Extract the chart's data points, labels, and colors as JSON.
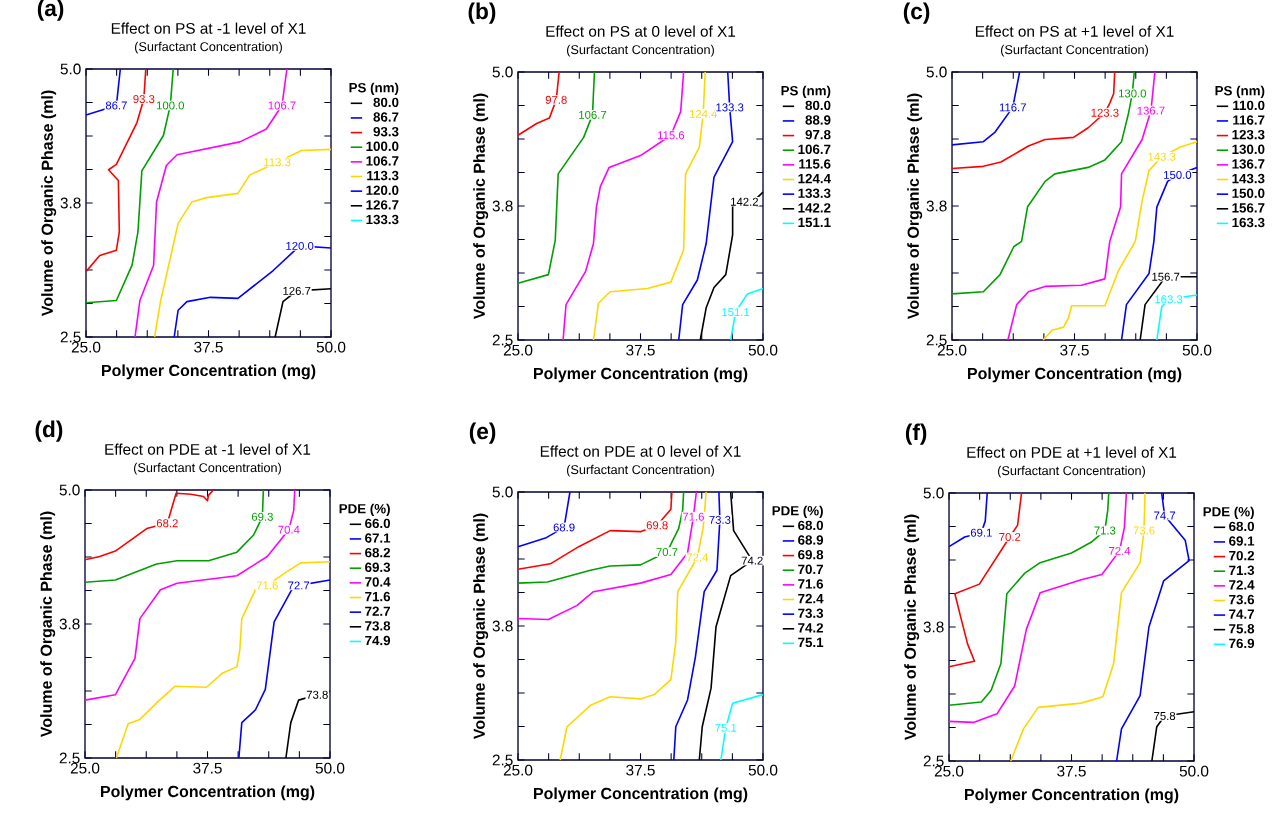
{
  "chart_data": [
    {
      "type": "line",
      "title": "Effect on PS at -1 level of X1",
      "subtitle": "(Surfactant Concentration)",
      "xlabel": "Polymer Concentration (mg)",
      "ylabel": "Volume of Organic Phase (ml)",
      "legend_title": "PS (nm)",
      "legend": "right",
      "xlim": [
        25,
        50
      ],
      "ylim": [
        2.5,
        5.0
      ],
      "xticks": [
        {
          "value": 25,
          "label": "25.0"
        },
        {
          "value": 28.125,
          "label": null
        },
        {
          "value": 31.25,
          "label": null
        },
        {
          "value": 34.375,
          "label": null
        },
        {
          "value": 37.5,
          "label": "37.5"
        },
        {
          "value": 40.625,
          "label": null
        },
        {
          "value": 43.75,
          "label": null
        },
        {
          "value": 46.875,
          "label": null
        },
        {
          "value": 50,
          "label": "50.0"
        }
      ],
      "yticks": [
        {
          "value": 2.5,
          "label": "2.5"
        },
        {
          "value": 2.8125,
          "label": null
        },
        {
          "value": 3.125,
          "label": null
        },
        {
          "value": 3.4375,
          "label": null
        },
        {
          "value": 3.75,
          "label": "3.8"
        },
        {
          "value": 4.0625,
          "label": null
        },
        {
          "value": 4.375,
          "label": null
        },
        {
          "value": 4.6875,
          "label": null
        },
        {
          "value": 5.0,
          "label": "5.0"
        }
      ],
      "annotations": [
        "(a)",
        {
          "text": "86.7",
          "x": 28.1,
          "y": 4.66
        },
        {
          "text": "93.3",
          "x": 30.9,
          "y": 4.72
        },
        {
          "text": "100.0",
          "x": 33.6,
          "y": 4.66
        },
        {
          "text": "106.7",
          "x": 45.0,
          "y": 4.66
        },
        {
          "text": "113.3",
          "x": 44.5,
          "y": 4.13
        },
        {
          "text": "120.0",
          "x": 46.8,
          "y": 3.35
        },
        {
          "text": "126.7",
          "x": 46.5,
          "y": 2.93
        }
      ],
      "series": [
        {
          "name": "80.0",
          "color": "#000000"
        },
        {
          "name": "86.7",
          "color": "#0000ff",
          "x": [
            25,
            28.1,
            28.5
          ],
          "values": [
            4.57,
            4.66,
            5.0
          ]
        },
        {
          "name": "93.3",
          "color": "#ff0000",
          "x": [
            25,
            26.4,
            28.1,
            28.4,
            28.3,
            27.3,
            28.1,
            30.2,
            30.9,
            31.1
          ],
          "values": [
            3.11,
            3.26,
            3.31,
            3.48,
            3.96,
            4.06,
            4.11,
            4.5,
            4.72,
            5.0
          ]
        },
        {
          "name": "100.0",
          "color": "#00a000",
          "x": [
            25,
            28.1,
            29.7,
            30.3,
            30.7,
            32.9,
            33.6,
            33.9
          ],
          "values": [
            2.82,
            2.84,
            3.17,
            3.48,
            4.05,
            4.38,
            4.66,
            5.0
          ]
        },
        {
          "name": "106.7",
          "color": "#ff00ff",
          "x": [
            30.0,
            30.5,
            31.9,
            32.2,
            33.2,
            34.3,
            40.7,
            43.4,
            45.0,
            45.5
          ],
          "values": [
            2.5,
            2.84,
            3.17,
            3.76,
            4.1,
            4.2,
            4.32,
            4.44,
            4.66,
            5.0
          ]
        },
        {
          "name": "113.3",
          "color": "#ffd700",
          "x": [
            32.0,
            32.6,
            34.4,
            35.8,
            37.3,
            40.5,
            41.7,
            44.5,
            47.0,
            50
          ],
          "values": [
            2.5,
            2.83,
            3.56,
            3.76,
            3.8,
            3.84,
            4.01,
            4.13,
            4.24,
            4.25
          ]
        },
        {
          "name": "120.0",
          "color": "#0000ff",
          "x": [
            34.0,
            34.4,
            35.3,
            37.7,
            40.5,
            44.1,
            46.8,
            50
          ],
          "values": [
            2.5,
            2.75,
            2.83,
            2.87,
            2.86,
            3.12,
            3.35,
            3.33
          ]
        },
        {
          "name": "126.7",
          "color": "#000000",
          "x": [
            44.3,
            45.1,
            46.5,
            50
          ],
          "values": [
            2.5,
            2.83,
            2.93,
            2.95
          ]
        },
        {
          "name": "133.3",
          "color": "#00ffff"
        }
      ]
    },
    {
      "type": "line",
      "title": "Effect on PS at 0 level of X1",
      "subtitle": "(Surfactant Concentration)",
      "xlabel": "Polymer Concentration (mg)",
      "ylabel": "Volume of Organic Phase (ml)",
      "legend_title": "PS (nm)",
      "legend": "right",
      "xlim": [
        25,
        50
      ],
      "ylim": [
        2.5,
        5.0
      ],
      "xticks": [
        {
          "value": 25,
          "label": "25.0"
        },
        {
          "value": 28.125,
          "label": null
        },
        {
          "value": 31.25,
          "label": null
        },
        {
          "value": 34.375,
          "label": null
        },
        {
          "value": 37.5,
          "label": "37.5"
        },
        {
          "value": 40.625,
          "label": null
        },
        {
          "value": 43.75,
          "label": null
        },
        {
          "value": 46.875,
          "label": null
        },
        {
          "value": 50,
          "label": "50.0"
        }
      ],
      "yticks": [
        {
          "value": 2.5,
          "label": "2.5"
        },
        {
          "value": 2.8125,
          "label": null
        },
        {
          "value": 3.125,
          "label": null
        },
        {
          "value": 3.4375,
          "label": null
        },
        {
          "value": 3.75,
          "label": "3.8"
        },
        {
          "value": 4.0625,
          "label": null
        },
        {
          "value": 4.375,
          "label": null
        },
        {
          "value": 4.6875,
          "label": null
        },
        {
          "value": 5.0,
          "label": "5.0"
        }
      ],
      "annotations": [
        "(b)",
        {
          "text": "97.8",
          "x": 28.9,
          "y": 4.74
        },
        {
          "text": "106.7",
          "x": 32.6,
          "y": 4.6
        },
        {
          "text": "115.6",
          "x": 40.6,
          "y": 4.41
        },
        {
          "text": "124.4",
          "x": 43.9,
          "y": 4.61
        },
        {
          "text": "133.3",
          "x": 46.6,
          "y": 4.67
        },
        {
          "text": "142.2",
          "x": 48.1,
          "y": 3.79
        },
        {
          "text": "151.1",
          "x": 47.2,
          "y": 2.76
        }
      ],
      "series": [
        {
          "name": "80.0",
          "color": "#000000"
        },
        {
          "name": "88.9",
          "color": "#0000ff"
        },
        {
          "name": "97.8",
          "color": "#ff0000",
          "x": [
            25,
            26.9,
            28.2,
            28.9,
            29.2
          ],
          "values": [
            4.41,
            4.52,
            4.57,
            4.74,
            5.0
          ]
        },
        {
          "name": "106.7",
          "color": "#00a000",
          "x": [
            25,
            28.1,
            28.8,
            29.1,
            31.7,
            32.6,
            32.8
          ],
          "values": [
            3.03,
            3.11,
            3.43,
            4.05,
            4.39,
            4.6,
            5.0
          ]
        },
        {
          "name": "115.6",
          "color": "#ff00ff",
          "x": [
            29.6,
            29.9,
            31.9,
            32.7,
            33.0,
            33.4,
            34.3,
            37.5,
            40.6,
            41.6,
            41.9
          ],
          "values": [
            2.5,
            2.83,
            3.14,
            3.4,
            3.74,
            3.93,
            4.11,
            4.22,
            4.41,
            4.63,
            5.0
          ]
        },
        {
          "name": "124.4",
          "color": "#ffd700",
          "x": [
            32.7,
            33.2,
            34.4,
            38.2,
            40.6,
            41.9,
            42.1,
            43.5,
            43.9,
            44.1
          ],
          "values": [
            2.5,
            2.84,
            2.95,
            2.98,
            3.04,
            3.34,
            4.05,
            4.3,
            4.61,
            5.0
          ]
        },
        {
          "name": "133.3",
          "color": "#0000ff",
          "x": [
            41.4,
            41.8,
            43.3,
            44.2,
            45.0,
            46.9,
            46.6,
            46.4
          ],
          "values": [
            2.5,
            2.83,
            3.06,
            3.4,
            4.02,
            4.35,
            4.67,
            5.0
          ]
        },
        {
          "name": "142.2",
          "color": "#000000",
          "x": [
            43.6,
            44.2,
            45.0,
            46.2,
            46.9,
            46.9,
            48.1,
            49.1,
            50
          ],
          "values": [
            2.5,
            2.8,
            2.99,
            3.11,
            3.48,
            3.75,
            3.79,
            3.8,
            3.88
          ]
        },
        {
          "name": "151.1",
          "color": "#00ffff",
          "x": [
            46.7,
            47.2,
            48.4,
            50
          ],
          "values": [
            2.5,
            2.76,
            2.93,
            2.98
          ]
        }
      ]
    },
    {
      "type": "line",
      "title": "Effect on PS at +1 level of X1",
      "subtitle": "(Surfactant Concentration)",
      "xlabel": "Polymer Concentration (mg)",
      "ylabel": "Volume of Organic Phase (ml)",
      "legend_title": "PS (nm)",
      "legend": "right",
      "xlim": [
        25,
        50
      ],
      "ylim": [
        2.5,
        5.0
      ],
      "xticks": [
        {
          "value": 25,
          "label": "25.0"
        },
        {
          "value": 28.125,
          "label": null
        },
        {
          "value": 31.25,
          "label": null
        },
        {
          "value": 34.375,
          "label": null
        },
        {
          "value": 37.5,
          "label": "37.5"
        },
        {
          "value": 40.625,
          "label": null
        },
        {
          "value": 43.75,
          "label": null
        },
        {
          "value": 46.875,
          "label": null
        },
        {
          "value": 50,
          "label": "50.0"
        }
      ],
      "yticks": [
        {
          "value": 2.5,
          "label": "2.5"
        },
        {
          "value": 2.8125,
          "label": null
        },
        {
          "value": 3.125,
          "label": null
        },
        {
          "value": 3.4375,
          "label": null
        },
        {
          "value": 3.75,
          "label": "3.8"
        },
        {
          "value": 4.0625,
          "label": null
        },
        {
          "value": 4.375,
          "label": null
        },
        {
          "value": 4.6875,
          "label": null
        },
        {
          "value": 5.0,
          "label": "5.0"
        }
      ],
      "annotations": [
        "(c)",
        {
          "text": "116.7",
          "x": 31.2,
          "y": 4.67
        },
        {
          "text": "123.3",
          "x": 40.6,
          "y": 4.62
        },
        {
          "text": "130.0",
          "x": 43.4,
          "y": 4.8
        },
        {
          "text": "136.7",
          "x": 45.3,
          "y": 4.64
        },
        {
          "text": "143.3",
          "x": 46.4,
          "y": 4.21
        },
        {
          "text": "150.0",
          "x": 48.0,
          "y": 4.04
        },
        {
          "text": "156.7",
          "x": 46.8,
          "y": 3.09
        },
        {
          "text": "163.3",
          "x": 47.1,
          "y": 2.88
        }
      ],
      "series": [
        {
          "name": "110.0",
          "color": "#000000"
        },
        {
          "name": "116.7",
          "color": "#0000ff",
          "x": [
            25,
            28.2,
            29.4,
            31.2,
            31.9
          ],
          "values": [
            4.32,
            4.35,
            4.44,
            4.67,
            5.0
          ]
        },
        {
          "name": "123.3",
          "color": "#ff0000",
          "x": [
            25,
            28.2,
            30.0,
            32.8,
            34.5,
            37.4,
            38.9,
            40.6,
            41.1,
            41.5,
            41.6
          ],
          "values": [
            4.1,
            4.12,
            4.16,
            4.31,
            4.37,
            4.39,
            4.48,
            4.62,
            4.71,
            4.8,
            5.0
          ]
        },
        {
          "name": "130.0",
          "color": "#00a000",
          "x": [
            25,
            28.2,
            29.9,
            31.3,
            32.1,
            32.7,
            34.5,
            35.5,
            38.9,
            40.6,
            42.3,
            43.0,
            43.4,
            43.6
          ],
          "values": [
            2.93,
            2.95,
            3.11,
            3.37,
            3.42,
            3.74,
            3.98,
            4.05,
            4.11,
            4.18,
            4.35,
            4.61,
            4.8,
            5.0
          ]
        },
        {
          "name": "136.7",
          "color": "#ff00ff",
          "x": [
            30.7,
            31.6,
            32.8,
            34.5,
            38.2,
            40.6,
            41.1,
            42.2,
            42.3,
            44.4,
            45.3,
            45.7
          ],
          "values": [
            2.5,
            2.83,
            2.95,
            3.0,
            3.01,
            3.07,
            3.42,
            3.74,
            4.05,
            4.37,
            4.64,
            5.0
          ]
        },
        {
          "name": "143.3",
          "color": "#ffd700",
          "x": [
            34.3,
            35.2,
            36.4,
            36.9,
            37.2,
            40.6,
            42.0,
            43.7,
            44.4,
            45.1,
            46.4,
            48.3,
            50
          ],
          "values": [
            2.5,
            2.59,
            2.62,
            2.71,
            2.82,
            2.82,
            3.15,
            3.42,
            3.8,
            4.08,
            4.21,
            4.3,
            4.35
          ]
        },
        {
          "name": "150.0",
          "color": "#0000ff",
          "x": [
            42.3,
            42.8,
            45.1,
            45.6,
            45.9,
            47.0,
            48.0,
            50
          ],
          "values": [
            2.5,
            2.83,
            3.12,
            3.42,
            3.74,
            3.98,
            4.04,
            4.11
          ]
        },
        {
          "name": "156.7",
          "color": "#000000",
          "x": [
            44.2,
            44.7,
            46.8,
            50
          ],
          "values": [
            2.5,
            2.83,
            3.09,
            3.09
          ]
        },
        {
          "name": "163.3",
          "color": "#00ffff",
          "x": [
            45.9,
            46.4,
            47.1,
            50
          ],
          "values": [
            2.5,
            2.81,
            2.88,
            2.92
          ]
        }
      ]
    },
    {
      "type": "line",
      "title": "Effect on PDE at -1 level of X1",
      "subtitle": "(Surfactant Concentration)",
      "xlabel": "Polymer Concentration (mg)",
      "ylabel": "Volume of Organic Phase (ml)",
      "legend_title": "PDE (%)",
      "legend": "right",
      "xlim": [
        25,
        50
      ],
      "ylim": [
        2.5,
        5.0
      ],
      "xticks": [
        {
          "value": 25,
          "label": "25.0"
        },
        {
          "value": 28.125,
          "label": null
        },
        {
          "value": 31.25,
          "label": null
        },
        {
          "value": 34.375,
          "label": null
        },
        {
          "value": 37.5,
          "label": "37.5"
        },
        {
          "value": 40.625,
          "label": null
        },
        {
          "value": 43.75,
          "label": null
        },
        {
          "value": 46.875,
          "label": null
        },
        {
          "value": 50,
          "label": "50.0"
        }
      ],
      "yticks": [
        {
          "value": 2.5,
          "label": "2.5"
        },
        {
          "value": 2.8125,
          "label": null
        },
        {
          "value": 3.125,
          "label": null
        },
        {
          "value": 3.4375,
          "label": null
        },
        {
          "value": 3.75,
          "label": "3.8"
        },
        {
          "value": 4.0625,
          "label": null
        },
        {
          "value": 4.375,
          "label": null
        },
        {
          "value": 4.6875,
          "label": null
        },
        {
          "value": 5.0,
          "label": "5.0"
        }
      ],
      "annotations": [
        "(d)",
        {
          "text": "68.2",
          "x": 33.4,
          "y": 4.69
        },
        {
          "text": "69.3",
          "x": 43.1,
          "y": 4.75
        },
        {
          "text": "70.4",
          "x": 45.8,
          "y": 4.63
        },
        {
          "text": "71.6",
          "x": 43.6,
          "y": 4.11
        },
        {
          "text": "72.7",
          "x": 46.8,
          "y": 4.11
        },
        {
          "text": "73.8",
          "x": 48.7,
          "y": 3.09
        }
      ],
      "series": [
        {
          "name": "66.0",
          "color": "#000000"
        },
        {
          "name": "67.1",
          "color": "#0000ff"
        },
        {
          "name": "68.2",
          "color": "#ff0000",
          "x": [
            25,
            26.5,
            28.1,
            31.3,
            33.4,
            34.3,
            35.8,
            37.1,
            37.5,
            37.6,
            38.1
          ],
          "values": [
            4.35,
            4.38,
            4.43,
            4.64,
            4.69,
            4.97,
            4.96,
            4.94,
            4.9,
            4.95,
            5.0
          ]
        },
        {
          "name": "69.3",
          "color": "#00a000",
          "x": [
            25,
            28.1,
            32.3,
            34.4,
            37.6,
            40.5,
            42.2,
            43.1,
            43.2
          ],
          "values": [
            4.14,
            4.16,
            4.31,
            4.34,
            4.34,
            4.42,
            4.58,
            4.75,
            5.0
          ]
        },
        {
          "name": "70.4",
          "color": "#ff00ff",
          "x": [
            25,
            28.1,
            28.8,
            30.1,
            30.6,
            32.7,
            34.4,
            40.5,
            43.6,
            45.8,
            46.3,
            46.4
          ],
          "values": [
            3.04,
            3.09,
            3.21,
            3.43,
            3.8,
            4.07,
            4.13,
            4.2,
            4.38,
            4.63,
            4.81,
            5.0
          ]
        },
        {
          "name": "71.6",
          "color": "#ffd700",
          "x": [
            28.2,
            29.4,
            30.6,
            32.5,
            34.2,
            37.4,
            39.0,
            40.5,
            40.8,
            41.0,
            42.4,
            43.6,
            45.3,
            47.0,
            50
          ],
          "values": [
            2.5,
            2.82,
            2.86,
            3.03,
            3.17,
            3.16,
            3.29,
            3.35,
            3.51,
            3.8,
            4.07,
            4.11,
            4.22,
            4.32,
            4.33
          ]
        },
        {
          "name": "72.7",
          "color": "#0000ff",
          "x": [
            40.7,
            41.0,
            42.4,
            43.4,
            44.3,
            46.1,
            46.8,
            50
          ],
          "values": [
            2.5,
            2.83,
            2.95,
            3.14,
            3.77,
            4.07,
            4.11,
            4.16
          ]
        },
        {
          "name": "73.8",
          "color": "#000000",
          "x": [
            45.5,
            46.0,
            46.8,
            48.7,
            50
          ],
          "values": [
            2.5,
            2.83,
            3.04,
            3.09,
            3.12
          ]
        },
        {
          "name": "74.9",
          "color": "#00ffff"
        }
      ]
    },
    {
      "type": "line",
      "title": "Effect on PDE at 0 level of X1",
      "subtitle": "(Surfactant Concentration)",
      "xlabel": "Polymer Concentration (mg)",
      "ylabel": "Volume of Organic Phase (ml)",
      "legend_title": "PDE (%)",
      "legend": "right",
      "xlim": [
        25,
        50
      ],
      "ylim": [
        2.5,
        5.0
      ],
      "xticks": [
        {
          "value": 25,
          "label": "25.0"
        },
        {
          "value": 28.125,
          "label": null
        },
        {
          "value": 31.25,
          "label": null
        },
        {
          "value": 34.375,
          "label": null
        },
        {
          "value": 37.5,
          "label": "37.5"
        },
        {
          "value": 40.625,
          "label": null
        },
        {
          "value": 43.75,
          "label": null
        },
        {
          "value": 46.875,
          "label": null
        },
        {
          "value": 50,
          "label": "50.0"
        }
      ],
      "yticks": [
        {
          "value": 2.5,
          "label": "2.5"
        },
        {
          "value": 2.8125,
          "label": null
        },
        {
          "value": 3.125,
          "label": null
        },
        {
          "value": 3.4375,
          "label": null
        },
        {
          "value": 3.75,
          "label": "3.8"
        },
        {
          "value": 4.0625,
          "label": null
        },
        {
          "value": 4.375,
          "label": null
        },
        {
          "value": 4.6875,
          "label": null
        },
        {
          "value": 5.0,
          "label": "5.0"
        }
      ],
      "annotations": [
        "(e)",
        {
          "text": "68.9",
          "x": 29.7,
          "y": 4.67
        },
        {
          "text": "69.8",
          "x": 39.2,
          "y": 4.69
        },
        {
          "text": "71.6",
          "x": 42.9,
          "y": 4.77
        },
        {
          "text": "73.3",
          "x": 45.6,
          "y": 4.74
        },
        {
          "text": "70.7",
          "x": 40.2,
          "y": 4.44
        },
        {
          "text": "72.4",
          "x": 43.3,
          "y": 4.39
        },
        {
          "text": "74.2",
          "x": 48.9,
          "y": 4.36
        },
        {
          "text": "75.1",
          "x": 46.2,
          "y": 2.8
        }
      ],
      "series": [
        {
          "name": "68.0",
          "color": "#000000"
        },
        {
          "name": "68.9",
          "color": "#0000ff",
          "x": [
            25,
            27.8,
            29.7,
            30.3
          ],
          "values": [
            4.49,
            4.57,
            4.67,
            5.0
          ]
        },
        {
          "name": "69.8",
          "color": "#ff0000",
          "x": [
            25,
            28.3,
            31.2,
            34.4,
            37.5,
            39.2,
            40.6,
            40.7
          ],
          "values": [
            4.28,
            4.33,
            4.49,
            4.64,
            4.63,
            4.69,
            4.84,
            5.0
          ]
        },
        {
          "name": "70.7",
          "color": "#00a000",
          "x": [
            25,
            28.0,
            32.4,
            34.4,
            37.5,
            40.2,
            41.4,
            41.8,
            41.9
          ],
          "values": [
            4.15,
            4.16,
            4.27,
            4.31,
            4.32,
            4.44,
            4.66,
            4.83,
            5.0
          ]
        },
        {
          "name": "71.6",
          "color": "#ff00ff",
          "x": [
            25,
            28.1,
            31.0,
            32.7,
            37.5,
            40.6,
            42.3,
            42.9,
            43.2
          ],
          "values": [
            3.82,
            3.81,
            3.94,
            4.07,
            4.15,
            4.23,
            4.43,
            4.77,
            5.0
          ]
        },
        {
          "name": "72.4",
          "color": "#ffd700",
          "x": [
            29.3,
            30.0,
            32.4,
            34.4,
            37.5,
            38.9,
            40.6,
            41.1,
            41.3,
            43.3,
            43.9,
            44.2
          ],
          "values": [
            2.5,
            2.81,
            3.01,
            3.09,
            3.07,
            3.11,
            3.25,
            3.6,
            4.07,
            4.39,
            4.67,
            5.0
          ]
        },
        {
          "name": "73.3",
          "color": "#0000ff",
          "x": [
            40.9,
            41.1,
            42.3,
            43.1,
            44.0,
            45.3,
            45.6,
            45.5
          ],
          "values": [
            2.5,
            2.81,
            3.06,
            3.46,
            4.07,
            4.27,
            4.74,
            5.0
          ]
        },
        {
          "name": "74.2",
          "color": "#000000",
          "x": [
            43.5,
            43.8,
            44.7,
            45.2,
            46.7,
            48.9,
            47.0,
            46.7
          ],
          "values": [
            2.5,
            2.81,
            3.17,
            3.74,
            4.22,
            4.36,
            4.64,
            5.0
          ]
        },
        {
          "name": "75.1",
          "color": "#00ffff",
          "x": [
            45.7,
            46.2,
            46.9,
            50
          ],
          "values": [
            2.5,
            2.8,
            3.03,
            3.11
          ]
        }
      ]
    },
    {
      "type": "line",
      "title": "Effect on PDE at +1 level of X1",
      "subtitle": "(Surfactant Concentration)",
      "xlabel": "Polymer Concentration (mg)",
      "ylabel": "Volume of Organic Phase (ml)",
      "legend_title": "PDE (%)",
      "legend": "right",
      "xlim": [
        25,
        50
      ],
      "ylim": [
        2.5,
        5.0
      ],
      "xticks": [
        {
          "value": 25,
          "label": "25.0"
        },
        {
          "value": 28.125,
          "label": null
        },
        {
          "value": 31.25,
          "label": null
        },
        {
          "value": 34.375,
          "label": null
        },
        {
          "value": 37.5,
          "label": "37.5"
        },
        {
          "value": 40.625,
          "label": null
        },
        {
          "value": 43.75,
          "label": null
        },
        {
          "value": 46.875,
          "label": null
        },
        {
          "value": 50,
          "label": "50.0"
        }
      ],
      "yticks": [
        {
          "value": 2.5,
          "label": "2.5"
        },
        {
          "value": 2.8125,
          "label": null
        },
        {
          "value": 3.125,
          "label": null
        },
        {
          "value": 3.4375,
          "label": null
        },
        {
          "value": 3.75,
          "label": "3.8"
        },
        {
          "value": 4.0625,
          "label": null
        },
        {
          "value": 4.375,
          "label": null
        },
        {
          "value": 4.6875,
          "label": null
        },
        {
          "value": 5.0,
          "label": "5.0"
        }
      ],
      "annotations": [
        "(f)",
        {
          "text": "69.1",
          "x": 28.3,
          "y": 4.63
        },
        {
          "text": "70.2",
          "x": 31.2,
          "y": 4.59
        },
        {
          "text": "71.3",
          "x": 40.9,
          "y": 4.65
        },
        {
          "text": "72.4",
          "x": 42.4,
          "y": 4.46
        },
        {
          "text": "73.6",
          "x": 44.9,
          "y": 4.65
        },
        {
          "text": "74.7",
          "x": 47.0,
          "y": 4.79
        },
        {
          "text": "75.8",
          "x": 47.0,
          "y": 2.92
        }
      ],
      "series": [
        {
          "name": "68.0",
          "color": "#000000"
        },
        {
          "name": "69.1",
          "color": "#0000ff",
          "x": [
            25,
            26.6,
            28.3,
            28.7,
            28.9
          ],
          "values": [
            4.5,
            4.59,
            4.63,
            4.74,
            5.0
          ]
        },
        {
          "name": "70.2",
          "color": "#ff0000",
          "x": [
            25,
            27.6,
            26.9,
            26.2,
            25.6,
            28.1,
            31.2,
            32.0,
            32.4
          ],
          "values": [
            3.38,
            3.43,
            3.59,
            3.84,
            4.06,
            4.15,
            4.59,
            4.7,
            5.0
          ]
        },
        {
          "name": "71.3",
          "color": "#00a000",
          "x": [
            25,
            28.3,
            29.3,
            30.3,
            30.9,
            32.7,
            34.3,
            37.5,
            39.5,
            40.9,
            41.2,
            41.3
          ],
          "values": [
            3.02,
            3.05,
            3.16,
            3.41,
            4.06,
            4.25,
            4.35,
            4.44,
            4.54,
            4.65,
            4.84,
            5.0
          ]
        },
        {
          "name": "72.4",
          "color": "#ff00ff",
          "x": [
            25,
            27.5,
            29.9,
            31.7,
            32.9,
            34.3,
            38.5,
            40.6,
            42.4,
            42.9,
            43.1
          ],
          "values": [
            2.87,
            2.86,
            2.94,
            3.2,
            3.73,
            4.07,
            4.19,
            4.24,
            4.46,
            4.68,
            5.0
          ]
        },
        {
          "name": "73.6",
          "color": "#ffd700",
          "x": [
            31.3,
            32.6,
            34.1,
            38.5,
            40.7,
            41.8,
            42.6,
            44.5,
            44.9,
            45.0
          ],
          "values": [
            2.5,
            2.8,
            3.0,
            3.04,
            3.1,
            3.41,
            4.07,
            4.35,
            4.65,
            5.0
          ]
        },
        {
          "name": "74.7",
          "color": "#0000ff",
          "x": [
            42.1,
            42.6,
            44.5,
            45.4,
            46.9,
            49.5,
            49.1,
            47.0,
            46.7
          ],
          "values": [
            2.5,
            2.8,
            3.11,
            3.75,
            4.18,
            4.37,
            4.56,
            4.79,
            5.0
          ]
        },
        {
          "name": "75.8",
          "color": "#000000",
          "x": [
            45.7,
            46.2,
            47.0,
            50
          ],
          "values": [
            2.5,
            2.82,
            2.92,
            2.96
          ]
        },
        {
          "name": "76.9",
          "color": "#00ffff"
        }
      ]
    }
  ]
}
